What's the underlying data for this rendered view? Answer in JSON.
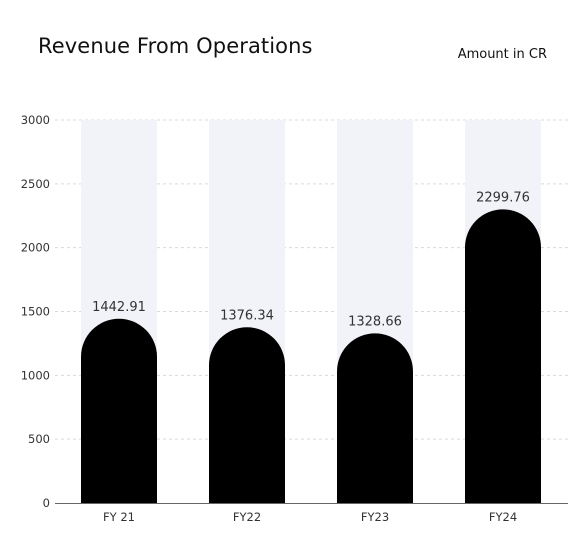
{
  "header": {
    "title": "Revenue From Operations",
    "unit_label": "Amount in CR"
  },
  "colors": {
    "bar": "#000000",
    "track": "#f2f3f8",
    "grid": "#d9d9d9",
    "axis": "#666666"
  },
  "chart_data": {
    "type": "bar",
    "title": "Revenue From Operations",
    "unit": "Amount in CR",
    "categories": [
      "FY 21",
      "FY22",
      "FY23",
      "FY24"
    ],
    "values": [
      1442.91,
      1376.34,
      1328.66,
      2299.76
    ],
    "value_labels": [
      "1442.91",
      "1376.34",
      "1328.66",
      "2299.76"
    ],
    "ylim": [
      0,
      3000
    ],
    "yticks": [
      0,
      500,
      1000,
      1500,
      2000,
      2500,
      3000
    ],
    "grid": true,
    "grid_style": "dashed",
    "background_track": true,
    "bar_shape": "rounded-top",
    "legend": "none"
  }
}
